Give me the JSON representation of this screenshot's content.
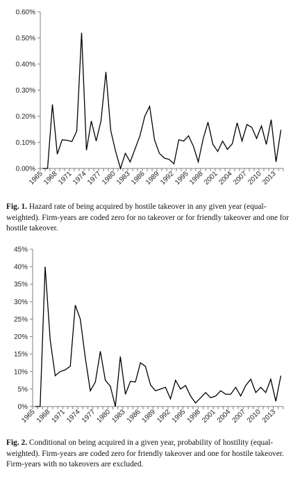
{
  "chart_data": [
    {
      "type": "line",
      "title": "",
      "xlabel": "",
      "ylabel": "",
      "grid": false,
      "x": [
        1965,
        1966,
        1967,
        1968,
        1969,
        1970,
        1971,
        1972,
        1973,
        1974,
        1975,
        1976,
        1977,
        1978,
        1979,
        1980,
        1981,
        1982,
        1983,
        1984,
        1985,
        1986,
        1987,
        1988,
        1989,
        1990,
        1991,
        1992,
        1993,
        1994,
        1995,
        1996,
        1997,
        1998,
        1999,
        2000,
        2001,
        2002,
        2003,
        2004,
        2005,
        2006,
        2007,
        2008,
        2009,
        2010,
        2011,
        2012,
        2013,
        2014
      ],
      "values": [
        0.0,
        0.0,
        0.00245,
        0.00055,
        0.0011,
        0.00108,
        0.00103,
        0.00143,
        0.0052,
        0.0007,
        0.00182,
        0.00105,
        0.00183,
        0.0037,
        0.00145,
        0.00065,
        0.0,
        0.00058,
        0.00025,
        0.00075,
        0.00125,
        0.002,
        0.00238,
        0.0011,
        0.00058,
        0.0004,
        0.00035,
        0.00018,
        0.0011,
        0.00105,
        0.00125,
        0.00085,
        0.00025,
        0.00113,
        0.00177,
        0.00093,
        0.00065,
        0.00105,
        0.00073,
        0.00095,
        0.00175,
        0.00105,
        0.00168,
        0.00158,
        0.00115,
        0.00163,
        0.00092,
        0.00187,
        0.00025,
        0.00148
      ],
      "ylim": [
        0,
        0.006
      ],
      "y_ticks": [
        "0.00%",
        "0.10%",
        "0.20%",
        "0.30%",
        "0.40%",
        "0.50%",
        "0.60%"
      ],
      "x_tick_labels": [
        "1965",
        "1968",
        "1971",
        "1974",
        "1977",
        "1980",
        "1983",
        "1986",
        "1989",
        "1992",
        "1995",
        "1998",
        "2001",
        "2004",
        "2007",
        "2010",
        "2013"
      ],
      "x_tick_years": [
        1965,
        1968,
        1971,
        1974,
        1977,
        1980,
        1983,
        1986,
        1989,
        1992,
        1995,
        1998,
        2001,
        2004,
        2007,
        2010,
        2013
      ]
    },
    {
      "type": "line",
      "title": "",
      "xlabel": "",
      "ylabel": "",
      "grid": false,
      "x": [
        1965,
        1966,
        1967,
        1968,
        1969,
        1970,
        1971,
        1972,
        1973,
        1974,
        1975,
        1976,
        1977,
        1978,
        1979,
        1980,
        1981,
        1982,
        1983,
        1984,
        1985,
        1986,
        1987,
        1988,
        1989,
        1990,
        1991,
        1992,
        1993,
        1994,
        1995,
        1996,
        1997,
        1998,
        1999,
        2000,
        2001,
        2002,
        2003,
        2004,
        2005,
        2006,
        2007,
        2008,
        2009,
        2010,
        2011,
        2012,
        2013,
        2014
      ],
      "values": [
        0.0,
        0.0,
        0.4,
        0.19,
        0.088,
        0.1,
        0.105,
        0.115,
        0.29,
        0.25,
        0.14,
        0.045,
        0.07,
        0.158,
        0.075,
        0.058,
        0.0,
        0.143,
        0.035,
        0.072,
        0.07,
        0.125,
        0.115,
        0.062,
        0.045,
        0.05,
        0.055,
        0.022,
        0.075,
        0.05,
        0.06,
        0.03,
        0.01,
        0.025,
        0.04,
        0.025,
        0.03,
        0.045,
        0.035,
        0.035,
        0.055,
        0.03,
        0.06,
        0.078,
        0.04,
        0.055,
        0.04,
        0.078,
        0.015,
        0.088
      ],
      "ylim": [
        0,
        0.45
      ],
      "y_ticks": [
        "0%",
        "5%",
        "10%",
        "15%",
        "20%",
        "25%",
        "30%",
        "35%",
        "40%",
        "45%"
      ],
      "x_tick_labels": [
        "1965",
        "1968",
        "1971",
        "1974",
        "1977",
        "1980",
        "1983",
        "1986",
        "1989",
        "1992",
        "1995",
        "1998",
        "2001",
        "2004",
        "2007",
        "2010",
        "2013"
      ],
      "x_tick_years": [
        1965,
        1968,
        1971,
        1974,
        1977,
        1980,
        1983,
        1986,
        1989,
        1992,
        1995,
        1998,
        2001,
        2004,
        2007,
        2010,
        2013
      ]
    }
  ],
  "captions": [
    {
      "label": "Fig. 1.",
      "text": "Hazard rate of being acquired by hostile takeover in any given year (equal-weighted). Firm-years are coded zero for no takeover or for friendly takeover and one for hostile takeover."
    },
    {
      "label": "Fig. 2.",
      "text": "Conditional on being acquired in a given year, probability of hostility (equal-weighted). Firm-years are coded zero for friendly takeover and one for hostile takeover. Firm-years with no takeovers are excluded."
    }
  ],
  "colors": {
    "line": "#000000",
    "axis": "#7f7f7f",
    "text": "#222222"
  }
}
